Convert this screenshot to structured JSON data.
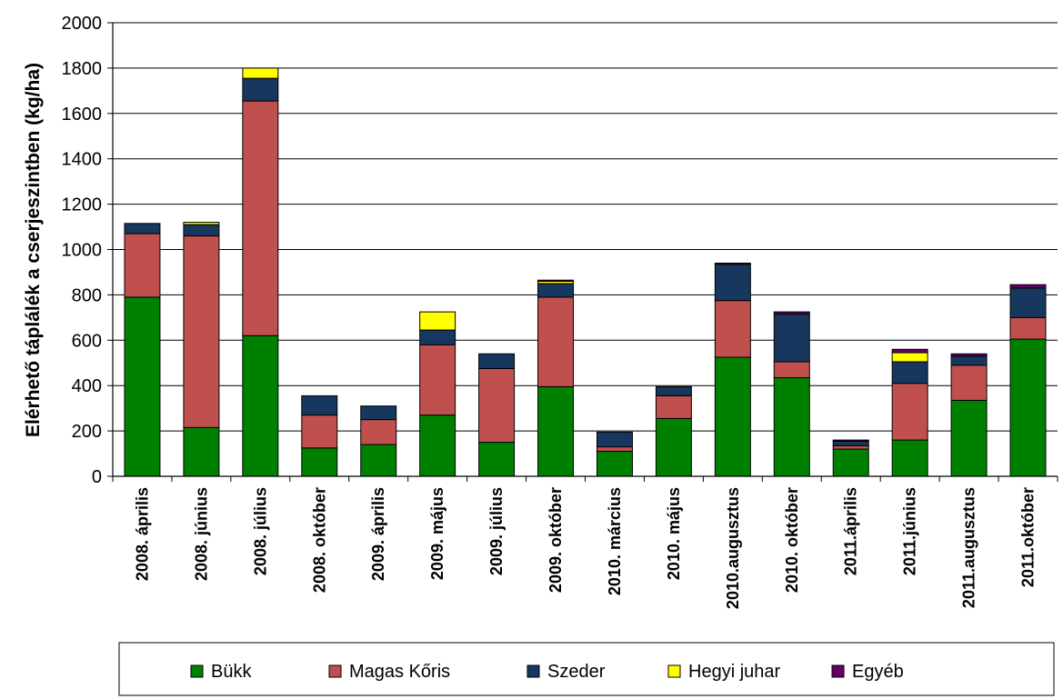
{
  "chart_data": {
    "type": "bar",
    "stacked": true,
    "title": "",
    "xlabel": "",
    "ylabel": "Elérhető táplálék a cserjeszintben (kg/ha)",
    "ylim": [
      0,
      2000
    ],
    "yticks": [
      0,
      200,
      400,
      600,
      800,
      1000,
      1200,
      1400,
      1600,
      1800,
      2000
    ],
    "grid": true,
    "legend_position": "bottom",
    "categories": [
      "2008. április",
      "2008. június",
      "2008. július",
      "2008. október",
      "2009. április",
      "2009. május",
      "2009. július",
      "2009. október",
      "2010. március",
      "2010. május",
      "2010.augusztus",
      "2010. október",
      "2011.április",
      "2011.június",
      "2011.augusztus",
      "2011.október"
    ],
    "series": [
      {
        "name": "Bükk",
        "color": "#008000",
        "values": [
          790,
          215,
          620,
          125,
          140,
          270,
          150,
          395,
          110,
          255,
          525,
          435,
          120,
          160,
          335,
          605
        ]
      },
      {
        "name": "Magas Kőris",
        "color": "#C0504D",
        "values": [
          280,
          845,
          1035,
          145,
          110,
          310,
          325,
          395,
          20,
          100,
          250,
          70,
          15,
          250,
          155,
          95
        ]
      },
      {
        "name": "Szeder",
        "color": "#17375E",
        "values": [
          45,
          50,
          100,
          85,
          60,
          65,
          65,
          60,
          65,
          40,
          160,
          210,
          20,
          95,
          40,
          130
        ]
      },
      {
        "name": "Hegyi juhar",
        "color": "#FFFF00",
        "values": [
          0,
          10,
          45,
          0,
          0,
          80,
          0,
          10,
          0,
          0,
          0,
          0,
          0,
          40,
          0,
          0
        ]
      },
      {
        "name": "Egyéb",
        "color": "#660066",
        "values": [
          0,
          0,
          0,
          0,
          0,
          0,
          0,
          5,
          0,
          0,
          5,
          10,
          5,
          15,
          10,
          15
        ]
      }
    ]
  }
}
